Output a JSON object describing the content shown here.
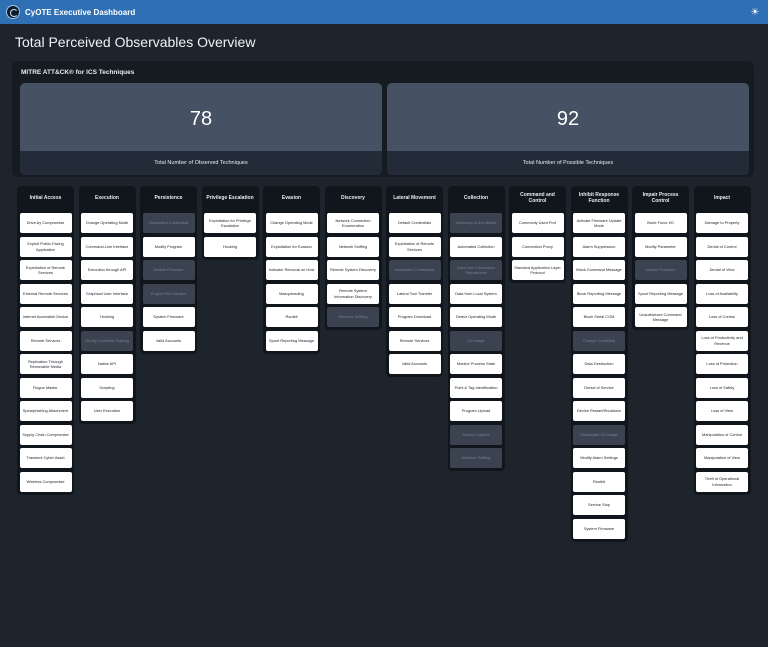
{
  "header": {
    "app_title": "CyOTE Executive Dashboard",
    "theme_icon": "sun-icon"
  },
  "page_title": "Total Perceived Observables Overview",
  "mitre": {
    "section_title": "MITRE ATT&CK® for ICS Techniques",
    "observed": {
      "value": "78",
      "label": "Total Number of Observed Techniques"
    },
    "possible": {
      "value": "92",
      "label": "Total Number of Possible Techniques"
    }
  },
  "tactics": [
    {
      "name": "Initial Access",
      "techniques": [
        {
          "label": "Drive-by Compromise",
          "observed": true
        },
        {
          "label": "Exploit Public-Facing Application",
          "observed": true
        },
        {
          "label": "Exploitation of Remote Services",
          "observed": true
        },
        {
          "label": "External Remote Services",
          "observed": true
        },
        {
          "label": "Internet Accessible Device",
          "observed": true
        },
        {
          "label": "Remote Services",
          "observed": true
        },
        {
          "label": "Replication Through Removable Media",
          "observed": true
        },
        {
          "label": "Rogue Master",
          "observed": true
        },
        {
          "label": "Spearphishing Attachment",
          "observed": true
        },
        {
          "label": "Supply Chain Compromise",
          "observed": true
        },
        {
          "label": "Transient Cyber Asset",
          "observed": true
        },
        {
          "label": "Wireless Compromise",
          "observed": true
        }
      ]
    },
    {
      "name": "Execution",
      "techniques": [
        {
          "label": "Change Operating Mode",
          "observed": true
        },
        {
          "label": "Command-Line Interface",
          "observed": true
        },
        {
          "label": "Execution through API",
          "observed": true
        },
        {
          "label": "Graphical User Interface",
          "observed": true
        },
        {
          "label": "Hooking",
          "observed": true
        },
        {
          "label": "Modify Controller Tasking",
          "observed": false
        },
        {
          "label": "Native API",
          "observed": true
        },
        {
          "label": "Scripting",
          "observed": true
        },
        {
          "label": "User Execution",
          "observed": true
        }
      ]
    },
    {
      "name": "Persistence",
      "techniques": [
        {
          "label": "Hardcoded Credentials",
          "observed": false
        },
        {
          "label": "Modify Program",
          "observed": true
        },
        {
          "label": "Module Firmware",
          "observed": false
        },
        {
          "label": "Project File Infection",
          "observed": false
        },
        {
          "label": "System Firmware",
          "observed": true
        },
        {
          "label": "Valid Accounts",
          "observed": true
        }
      ]
    },
    {
      "name": "Privilege Escalation",
      "techniques": [
        {
          "label": "Exploitation for Privilege Escalation",
          "observed": true
        },
        {
          "label": "Hooking",
          "observed": true
        }
      ]
    },
    {
      "name": "Evasion",
      "techniques": [
        {
          "label": "Change Operating Mode",
          "observed": true
        },
        {
          "label": "Exploitation for Evasion",
          "observed": true
        },
        {
          "label": "Indicator Removal on Host",
          "observed": true
        },
        {
          "label": "Masquerading",
          "observed": true
        },
        {
          "label": "Rootkit",
          "observed": true
        },
        {
          "label": "Spoof Reporting Message",
          "observed": true
        }
      ]
    },
    {
      "name": "Discovery",
      "techniques": [
        {
          "label": "Network Connection Enumeration",
          "observed": true
        },
        {
          "label": "Network Sniffing",
          "observed": true
        },
        {
          "label": "Remote System Discovery",
          "observed": true
        },
        {
          "label": "Remote System Information Discovery",
          "observed": true
        },
        {
          "label": "Wireless Sniffing",
          "observed": false
        }
      ]
    },
    {
      "name": "Lateral Movement",
      "techniques": [
        {
          "label": "Default Credentials",
          "observed": true
        },
        {
          "label": "Exploitation of Remote Services",
          "observed": true
        },
        {
          "label": "Hardcoded Credentials",
          "observed": false
        },
        {
          "label": "Lateral Tool Transfer",
          "observed": true
        },
        {
          "label": "Program Download",
          "observed": true
        },
        {
          "label": "Remote Services",
          "observed": true
        },
        {
          "label": "Valid Accounts",
          "observed": true
        }
      ]
    },
    {
      "name": "Collection",
      "techniques": [
        {
          "label": "Adversary-in-the-Middle",
          "observed": false
        },
        {
          "label": "Automated Collection",
          "observed": true
        },
        {
          "label": "Data from Information Repositories",
          "observed": false
        },
        {
          "label": "Data from Local System",
          "observed": true
        },
        {
          "label": "Detect Operating Mode",
          "observed": true
        },
        {
          "label": "I/O Image",
          "observed": false
        },
        {
          "label": "Monitor Process State",
          "observed": true
        },
        {
          "label": "Point & Tag Identification",
          "observed": true
        },
        {
          "label": "Program Upload",
          "observed": true
        },
        {
          "label": "Screen Capture",
          "observed": false
        },
        {
          "label": "Wireless Sniffing",
          "observed": false
        }
      ]
    },
    {
      "name": "Command and Control",
      "techniques": [
        {
          "label": "Commonly Used Port",
          "observed": true
        },
        {
          "label": "Connection Proxy",
          "observed": true
        },
        {
          "label": "Standard Application Layer Protocol",
          "observed": true
        }
      ]
    },
    {
      "name": "Inhibit Response Function",
      "techniques": [
        {
          "label": "Activate Firmware Update Mode",
          "observed": true
        },
        {
          "label": "Alarm Suppression",
          "observed": true
        },
        {
          "label": "Block Command Message",
          "observed": true
        },
        {
          "label": "Block Reporting Message",
          "observed": true
        },
        {
          "label": "Block Serial COM",
          "observed": true
        },
        {
          "label": "Change Credential",
          "observed": false
        },
        {
          "label": "Data Destruction",
          "observed": true
        },
        {
          "label": "Denial of Service",
          "observed": true
        },
        {
          "label": "Device Restart/Shutdown",
          "observed": true
        },
        {
          "label": "Manipulate I/O Image",
          "observed": false
        },
        {
          "label": "Modify Alarm Settings",
          "observed": true
        },
        {
          "label": "Rootkit",
          "observed": true
        },
        {
          "label": "Service Stop",
          "observed": true
        },
        {
          "label": "System Firmware",
          "observed": true
        }
      ]
    },
    {
      "name": "Impair Process Control",
      "techniques": [
        {
          "label": "Brute Force I/O",
          "observed": true
        },
        {
          "label": "Modify Parameter",
          "observed": true
        },
        {
          "label": "Module Firmware",
          "observed": false
        },
        {
          "label": "Spoof Reporting Message",
          "observed": true
        },
        {
          "label": "Unauthorized Command Message",
          "observed": true
        }
      ]
    },
    {
      "name": "Impact",
      "techniques": [
        {
          "label": "Damage to Property",
          "observed": true
        },
        {
          "label": "Denial of Control",
          "observed": true
        },
        {
          "label": "Denial of View",
          "observed": true
        },
        {
          "label": "Loss of Availability",
          "observed": true
        },
        {
          "label": "Loss of Control",
          "observed": true
        },
        {
          "label": "Loss of Productivity and Revenue",
          "observed": true
        },
        {
          "label": "Loss of Protection",
          "observed": true
        },
        {
          "label": "Loss of Safety",
          "observed": true
        },
        {
          "label": "Loss of View",
          "observed": true
        },
        {
          "label": "Manipulation of Control",
          "observed": true
        },
        {
          "label": "Manipulation of View",
          "observed": true
        },
        {
          "label": "Theft of Operational Information",
          "observed": true
        }
      ]
    }
  ]
}
